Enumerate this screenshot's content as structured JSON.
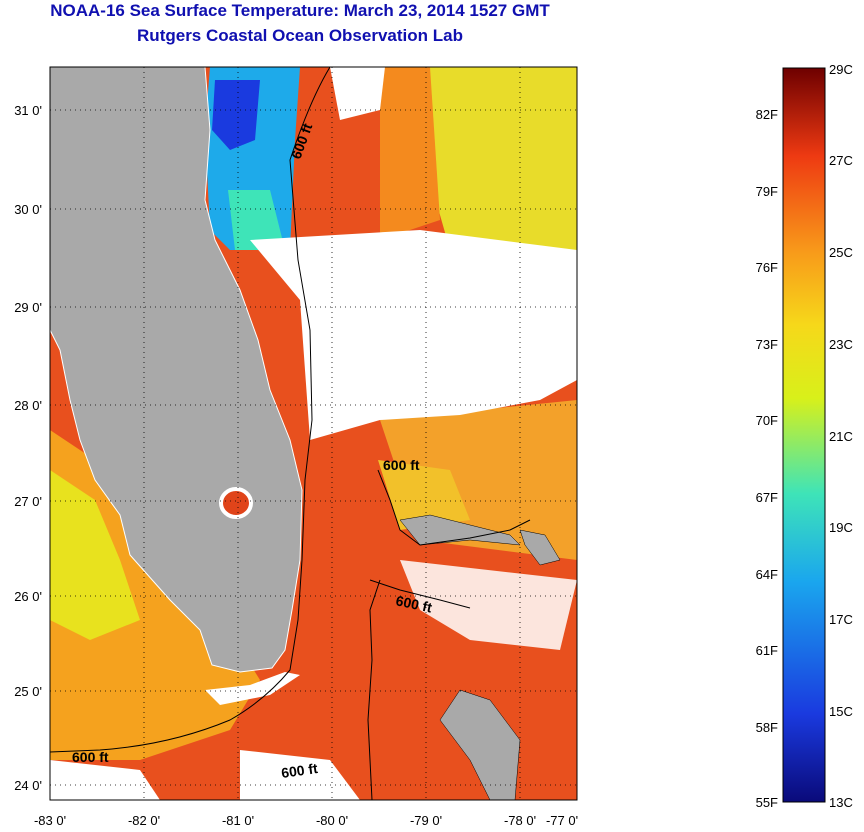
{
  "header": {
    "title": "NOAA-16 Sea Surface Temperature:  March 23, 2014 1527 GMT",
    "subtitle": "Rutgers Coastal Ocean Observation Lab"
  },
  "map": {
    "lon_labels": [
      "-83 0'",
      "-82 0'",
      "-81 0'",
      "-80 0'",
      "-79 0'",
      "-78 0'",
      "-77 0'"
    ],
    "lat_labels": [
      "31 0'",
      "30 0'",
      "29 0'",
      "28 0'",
      "27 0'",
      "26 0'",
      "25 0'",
      "24 0'"
    ],
    "contour_labels": [
      "600 ft",
      "600 ft",
      "600 ft",
      "600 ft",
      "600 ft"
    ],
    "colors": {
      "land": "#a9a9a9",
      "cloud": "#ffffff",
      "warm": "#e8481c",
      "mid": "#f2c12a",
      "cool": "#2a8ce6",
      "cold": "#1c2aa8"
    }
  },
  "colorbar": {
    "fahrenheit": [
      "82F",
      "79F",
      "76F",
      "73F",
      "70F",
      "67F",
      "64F",
      "61F",
      "58F",
      "55F"
    ],
    "celsius": [
      "29C",
      "27C",
      "25C",
      "23C",
      "21C",
      "19C",
      "17C",
      "15C",
      "13C"
    ],
    "stops": [
      "#0a0a7a",
      "#1a3adf",
      "#1aa6ee",
      "#3ee4b8",
      "#d8f01a",
      "#f6d81a",
      "#f89a1a",
      "#ee3a12",
      "#6e0000"
    ]
  }
}
